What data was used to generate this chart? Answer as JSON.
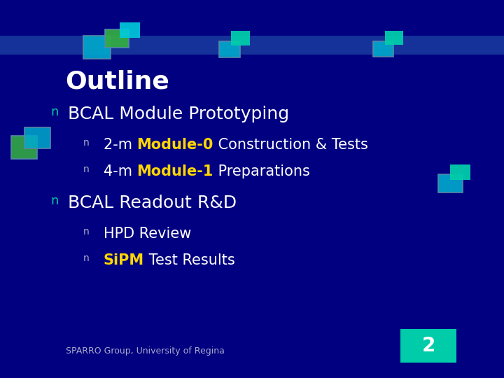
{
  "background_color": "#000080",
  "title": "Outline",
  "title_color": "#ffffff",
  "title_fontsize": 26,
  "bullet1": "BCAL Module Prototyping",
  "bullet1_color": "#ffffff",
  "bullet1_fontsize": 18,
  "sub1a_prefix": "2-m ",
  "sub1a_highlight": "Module-0",
  "sub1a_suffix": " Construction & Tests",
  "sub1a_highlight_color": "#ffd700",
  "sub1b_prefix": "4-m ",
  "sub1b_highlight": "Module-1",
  "sub1b_suffix": " Preparations",
  "sub1b_highlight_color": "#ffd700",
  "bullet2": "BCAL Readout R&D",
  "bullet2_color": "#ffffff",
  "bullet2_fontsize": 18,
  "sub2a": "HPD Review",
  "sub2a_color": "#ffffff",
  "sub2b_highlight": "SiPM",
  "sub2b_suffix": " Test Results",
  "sub2b_highlight_color": "#ffd700",
  "sub_fontsize": 15,
  "footer_text": "SPARRO Group, University of Regina",
  "footer_color": "#aaaacc",
  "footer_fontsize": 9,
  "page_number": "2",
  "page_number_color": "#ffffff",
  "page_number_bg": "#00ccaa",
  "header_line_color": "#2255aa",
  "bullet_color": "#00ccaa",
  "sub_bullet_color": "#aaaacc"
}
